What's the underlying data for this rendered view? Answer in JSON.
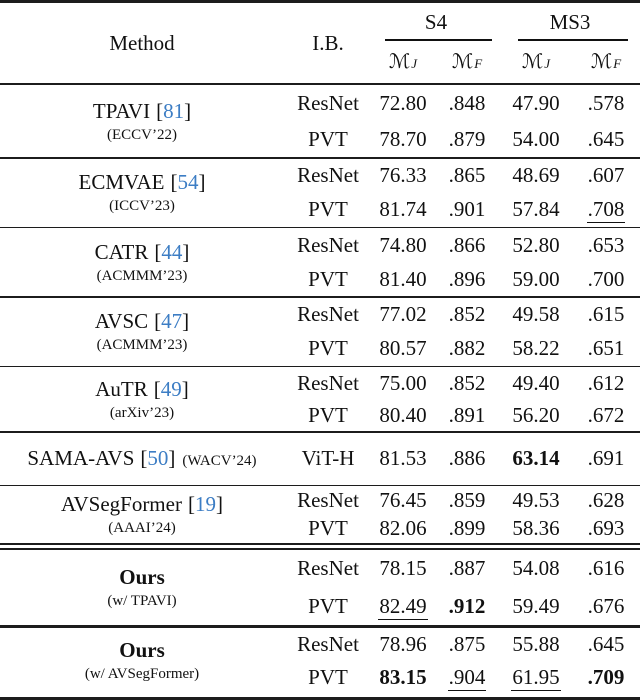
{
  "colors": {
    "cite": "#3c7dc4",
    "text": "#111111",
    "rule": "#1c1c1c",
    "background": "#ffffff"
  },
  "header": {
    "method_label": "Method",
    "ib_label": "I.B.",
    "group_s4": "S4",
    "group_ms3": "MS3",
    "metric_m": "ℳ",
    "metric_sub_j": "J",
    "metric_sub_f": "F"
  },
  "sections": [
    {
      "name": "TPAVI",
      "cite": "81",
      "venue": "(ECCV’22)",
      "venue_inline": false,
      "bold_name": false,
      "rule_before": "",
      "rows": [
        {
          "ib": "ResNet",
          "cells": [
            {
              "v": "72.80"
            },
            {
              "v": ".848"
            },
            {
              "v": "47.90"
            },
            {
              "v": ".578"
            }
          ]
        },
        {
          "ib": "PVT",
          "cells": [
            {
              "v": "78.70"
            },
            {
              "v": ".879"
            },
            {
              "v": "54.00"
            },
            {
              "v": ".645"
            }
          ]
        }
      ]
    },
    {
      "name": "ECMVAE",
      "cite": "54",
      "venue": "(ICCV’23)",
      "venue_inline": false,
      "bold_name": false,
      "rule_before": "thin",
      "rows": [
        {
          "ib": "ResNet",
          "cells": [
            {
              "v": "76.33"
            },
            {
              "v": ".865"
            },
            {
              "v": "48.69"
            },
            {
              "v": ".607"
            }
          ]
        },
        {
          "ib": "PVT",
          "cells": [
            {
              "v": "81.74"
            },
            {
              "v": ".901"
            },
            {
              "v": "57.84"
            },
            {
              "v": ".708",
              "u": true
            }
          ]
        }
      ]
    },
    {
      "name": "CATR",
      "cite": "44",
      "venue": "(ACMMM’23)",
      "venue_inline": false,
      "bold_name": false,
      "rule_before": "thin",
      "rows": [
        {
          "ib": "ResNet",
          "cells": [
            {
              "v": "74.80"
            },
            {
              "v": ".866"
            },
            {
              "v": "52.80"
            },
            {
              "v": ".653"
            }
          ]
        },
        {
          "ib": "PVT",
          "cells": [
            {
              "v": "81.40"
            },
            {
              "v": ".896"
            },
            {
              "v": "59.00"
            },
            {
              "v": ".700"
            }
          ]
        }
      ]
    },
    {
      "name": "AVSC",
      "cite": "47",
      "venue": "(ACMMM’23)",
      "venue_inline": false,
      "bold_name": false,
      "rule_before": "thin",
      "rows": [
        {
          "ib": "ResNet",
          "cells": [
            {
              "v": "77.02"
            },
            {
              "v": ".852"
            },
            {
              "v": "49.58"
            },
            {
              "v": ".615"
            }
          ]
        },
        {
          "ib": "PVT",
          "cells": [
            {
              "v": "80.57"
            },
            {
              "v": ".882"
            },
            {
              "v": "58.22"
            },
            {
              "v": ".651"
            }
          ]
        }
      ]
    },
    {
      "name": "AuTR",
      "cite": "49",
      "venue": "(arXiv’23)",
      "venue_inline": false,
      "bold_name": false,
      "rule_before": "thin",
      "rows": [
        {
          "ib": "ResNet",
          "cells": [
            {
              "v": "75.00"
            },
            {
              "v": ".852"
            },
            {
              "v": "49.40"
            },
            {
              "v": ".612"
            }
          ]
        },
        {
          "ib": "PVT",
          "cells": [
            {
              "v": "80.40"
            },
            {
              "v": ".891"
            },
            {
              "v": "56.20"
            },
            {
              "v": ".672"
            }
          ]
        }
      ]
    },
    {
      "name": "SAMA-AVS",
      "cite": "50",
      "venue": "(WACV’24)",
      "venue_inline": true,
      "bold_name": false,
      "rule_before": "thin",
      "rows": [
        {
          "ib": "ViT-H",
          "cells": [
            {
              "v": "81.53"
            },
            {
              "v": ".886"
            },
            {
              "v": "63.14",
              "b": true
            },
            {
              "v": ".691"
            }
          ]
        }
      ]
    },
    {
      "name": "AVSegFormer",
      "cite": "19",
      "venue": "(AAAI’24)",
      "venue_inline": false,
      "bold_name": false,
      "rule_before": "thin",
      "rows": [
        {
          "ib": "ResNet",
          "cells": [
            {
              "v": "76.45"
            },
            {
              "v": ".859"
            },
            {
              "v": "49.53"
            },
            {
              "v": ".628"
            }
          ]
        },
        {
          "ib": "PVT",
          "cells": [
            {
              "v": "82.06"
            },
            {
              "v": ".899"
            },
            {
              "v": "58.36"
            },
            {
              "v": ".693"
            }
          ]
        }
      ]
    },
    {
      "name": "Ours",
      "cite": "",
      "venue": "(w/ TPAVI)",
      "venue_inline": false,
      "bold_name": true,
      "rule_before": "double",
      "rows": [
        {
          "ib": "ResNet",
          "cells": [
            {
              "v": "78.15"
            },
            {
              "v": ".887"
            },
            {
              "v": "54.08"
            },
            {
              "v": ".616"
            }
          ]
        },
        {
          "ib": "PVT",
          "cells": [
            {
              "v": "82.49",
              "u": true
            },
            {
              "v": ".912",
              "b": true
            },
            {
              "v": "59.49"
            },
            {
              "v": ".676"
            }
          ]
        }
      ]
    },
    {
      "name": "Ours",
      "cite": "",
      "venue": "(w/ AVSegFormer)",
      "venue_inline": false,
      "bold_name": true,
      "rule_before": "medium",
      "rows": [
        {
          "ib": "ResNet",
          "cells": [
            {
              "v": "78.96"
            },
            {
              "v": ".875"
            },
            {
              "v": "55.88"
            },
            {
              "v": ".645"
            }
          ]
        },
        {
          "ib": "PVT",
          "cells": [
            {
              "v": "83.15",
              "b": true
            },
            {
              "v": ".904",
              "u": true
            },
            {
              "v": "61.95",
              "u": true
            },
            {
              "v": ".709",
              "b": true
            }
          ]
        }
      ]
    }
  ]
}
